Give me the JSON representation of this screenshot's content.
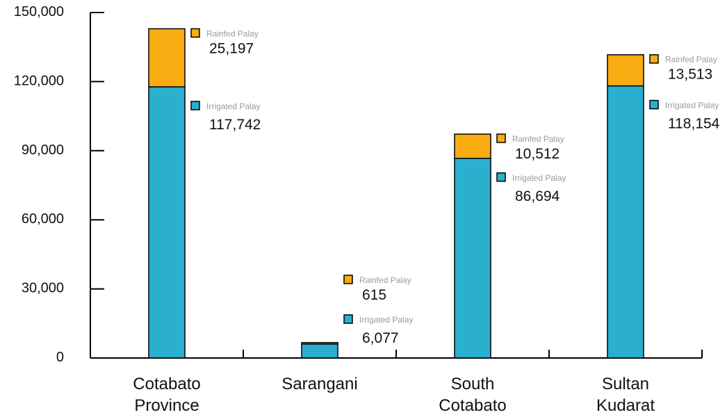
{
  "chart_data": {
    "type": "bar",
    "stacked": true,
    "categories": [
      [
        "Cotabato",
        "Province"
      ],
      [
        "Sarangani"
      ],
      [
        "South",
        "Cotabato"
      ],
      [
        "Sultan",
        "Kudarat"
      ]
    ],
    "series": [
      {
        "name": "Irrigated Palay",
        "color": "#2AAFCF",
        "values": [
          117742,
          6077,
          86694,
          118154
        ],
        "value_labels": [
          "117,742",
          "6,077",
          "86,694",
          "118,154"
        ]
      },
      {
        "name": "Rainfed Palay",
        "color": "#F9AC12",
        "values": [
          25197,
          615,
          10512,
          13513
        ],
        "value_labels": [
          "25,197",
          "615",
          "10,512",
          "13,513"
        ]
      }
    ],
    "yticks": [
      0,
      30000,
      60000,
      90000,
      120000,
      150000
    ],
    "ytick_labels": [
      "0",
      "30,000",
      "60,000",
      "90,000",
      "120,000",
      "150,000"
    ],
    "ylim": [
      0,
      150000
    ],
    "grid": false,
    "legend": "inline labels beside each bar"
  }
}
